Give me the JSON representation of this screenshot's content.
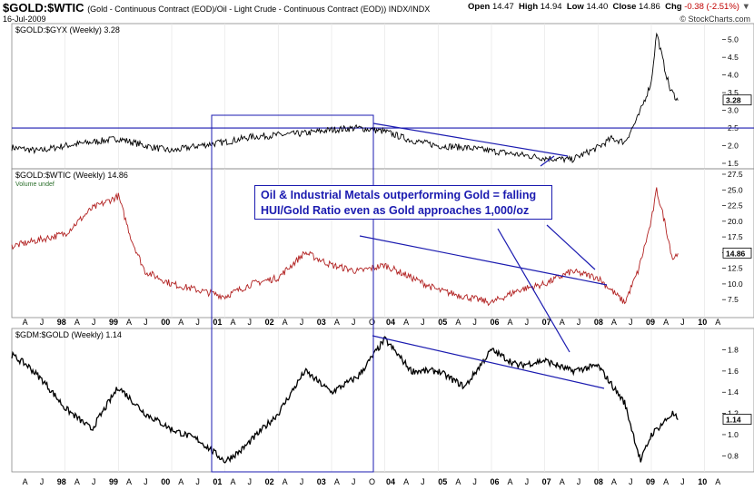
{
  "header": {
    "symbol": "$GOLD:$WTIC",
    "description": "(Gold - Continuous Contract (EOD)/Oil - Light Crude - Continuous Contract (EOD)) INDX/INDX",
    "date": "16-Jul-2009",
    "open_label": "Open",
    "open": "14.47",
    "high_label": "High",
    "high": "14.94",
    "low_label": "Low",
    "low": "14.40",
    "close_label": "Close",
    "close": "14.86",
    "chg_label": "Chg",
    "chg": "-0.38 (-2.51%)",
    "brand": "© StockCharts.com"
  },
  "annotation": {
    "line1": "Oil & Industrial Metals outperforming Gold = falling",
    "line2": "HUI/Gold Ratio even as Gold approaches 1,000/oz"
  },
  "colors": {
    "line_black": "#000000",
    "line_red": "#b22222",
    "trend_blue": "#1b1bb0"
  },
  "chart_data": [
    {
      "type": "line",
      "title": "$GOLD:$GYX (Weekly) 3.28",
      "last_value": "3.28",
      "ylim": [
        1.5,
        5.3
      ],
      "yticks": [
        "5.0",
        "4.5",
        "4.0",
        "3.5",
        "3.0",
        "2.5",
        "2.0",
        "1.5"
      ],
      "yticks_num": [
        5.0,
        4.5,
        4.0,
        3.5,
        3.0,
        2.5,
        2.0,
        1.5
      ],
      "horizontal_line": 2.5,
      "x": [
        1997.0,
        1997.5,
        1998.0,
        1998.5,
        1999.0,
        1999.5,
        2000.0,
        2000.5,
        2001.0,
        2001.5,
        2002.0,
        2002.5,
        2003.0,
        2003.5,
        2004.0,
        2004.5,
        2005.0,
        2005.5,
        2006.0,
        2006.5,
        2007.0,
        2007.5,
        2008.0,
        2008.25,
        2008.5,
        2008.75,
        2009.0,
        2009.1,
        2009.25,
        2009.35,
        2009.5
      ],
      "series": [
        {
          "values": [
            1.95,
            1.85,
            2.0,
            2.1,
            2.2,
            2.0,
            1.85,
            2.0,
            2.1,
            2.25,
            2.3,
            2.35,
            2.45,
            2.5,
            2.4,
            2.15,
            2.0,
            1.95,
            1.85,
            1.75,
            1.65,
            1.6,
            1.95,
            2.2,
            2.1,
            2.8,
            3.8,
            5.2,
            4.2,
            3.6,
            3.28
          ]
        }
      ]
    },
    {
      "type": "line",
      "title": "$GOLD:$WTIC (Weekly) 14.86",
      "subtitle": "Volume undef",
      "last_value": "14.86",
      "ylim": [
        5.5,
        27.5
      ],
      "yticks": [
        "27.5",
        "25.0",
        "22.5",
        "20.0",
        "17.5",
        "15.0",
        "12.5",
        "10.0",
        "7.5"
      ],
      "yticks_num": [
        27.5,
        25.0,
        22.5,
        20.0,
        17.5,
        15.0,
        12.5,
        10.0,
        7.5
      ],
      "x": [
        1997.0,
        1997.5,
        1998.0,
        1998.5,
        1999.0,
        1999.25,
        1999.5,
        2000.0,
        2000.5,
        2001.0,
        2001.5,
        2002.0,
        2002.5,
        2003.0,
        2003.5,
        2004.0,
        2004.5,
        2005.0,
        2005.5,
        2006.0,
        2006.5,
        2007.0,
        2007.5,
        2008.0,
        2008.25,
        2008.5,
        2008.75,
        2009.0,
        2009.1,
        2009.25,
        2009.4,
        2009.5
      ],
      "series": [
        {
          "values": [
            16,
            17,
            18,
            22,
            24,
            17,
            12,
            10,
            9,
            8,
            10,
            11,
            15,
            13,
            12,
            13,
            11,
            9,
            8,
            7,
            9,
            10,
            12,
            11,
            9,
            7,
            12,
            20,
            25,
            20,
            14,
            14.86
          ]
        }
      ]
    },
    {
      "type": "line",
      "title": "$GDM:$GOLD (Weekly) 1.14",
      "last_value": "1.14",
      "ylim": [
        0.7,
        1.95
      ],
      "yticks": [
        "1.8",
        "1.6",
        "1.4",
        "1.2",
        "1.0",
        "0.8"
      ],
      "yticks_num": [
        1.8,
        1.6,
        1.4,
        1.2,
        1.0,
        0.8
      ],
      "x": [
        1997.0,
        1997.3,
        1997.6,
        1998.0,
        1998.5,
        1999.0,
        1999.5,
        2000.0,
        2000.5,
        2001.0,
        2001.3,
        2001.6,
        2002.0,
        2002.5,
        2003.0,
        2003.5,
        2004.0,
        2004.5,
        2005.0,
        2005.5,
        2006.0,
        2006.5,
        2007.0,
        2007.5,
        2008.0,
        2008.5,
        2008.8,
        2009.0,
        2009.2,
        2009.4,
        2009.5
      ],
      "series": [
        {
          "values": [
            1.75,
            1.65,
            1.5,
            1.25,
            1.05,
            1.45,
            1.2,
            1.05,
            0.95,
            0.75,
            0.85,
            1.0,
            1.2,
            1.6,
            1.4,
            1.55,
            1.9,
            1.6,
            1.6,
            1.45,
            1.8,
            1.65,
            1.7,
            1.6,
            1.65,
            1.3,
            0.75,
            1.0,
            1.1,
            1.2,
            1.14
          ]
        }
      ]
    }
  ],
  "x_axis": {
    "labels_top": [
      "A",
      "J",
      "98",
      "A",
      "J",
      "99",
      "A",
      "J",
      "00",
      "A",
      "J",
      "01",
      "A",
      "J",
      "02",
      "A",
      "J",
      "03",
      "A",
      "J",
      "O",
      "04",
      "A",
      "J",
      "05",
      "A",
      "J",
      "06",
      "A",
      "J",
      "07",
      "A",
      "J",
      "08",
      "A",
      "J",
      "09",
      "A",
      "J",
      "10",
      "A"
    ],
    "labels_bottom": [
      "A",
      "J",
      "98",
      "A",
      "J",
      "99",
      "A",
      "J",
      "00",
      "A",
      "J",
      "01",
      "A",
      "J",
      "02",
      "A",
      "J",
      "03",
      "A",
      "J",
      "O",
      "04",
      "A",
      "J",
      "05",
      "A",
      "J",
      "06",
      "A",
      "J",
      "07",
      "A",
      "J",
      "08",
      "A",
      "J",
      "09",
      "A",
      "J",
      "10",
      "A"
    ]
  }
}
